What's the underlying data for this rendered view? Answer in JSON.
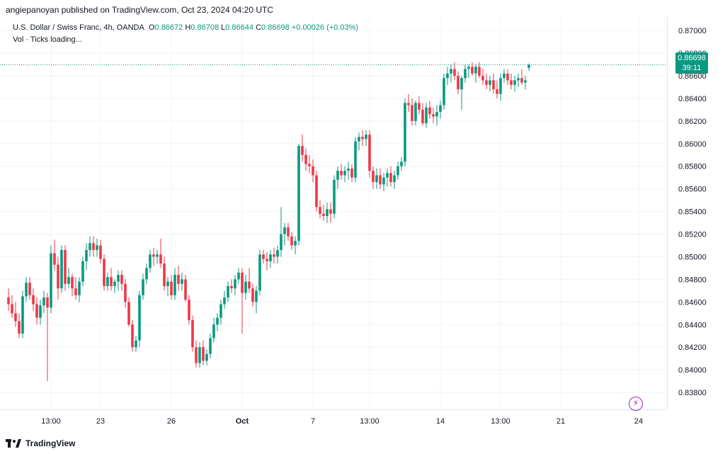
{
  "header": {
    "published_text": "angiepanoyan published on TradingView.com, Oct 23, 2024 04:20 UTC"
  },
  "legend": {
    "symbol": "U.S. Dollar / Swiss Franc, 4h, OANDA",
    "o_label": "O",
    "o_value": "0.86672",
    "h_label": "H",
    "h_value": "0.86708",
    "l_label": "L",
    "l_value": "0.86644",
    "c_label": "C",
    "c_value": "0.86698",
    "change": "+0.00026 (+0.03%)",
    "volume": "Vol · Ticks loading..."
  },
  "price_tag": {
    "price": "0.86698",
    "countdown": "39:11"
  },
  "footer": {
    "brand": "TradingView"
  },
  "colors": {
    "up": "#089981",
    "down": "#f23645",
    "grid": "#f0f3fa",
    "text": "#131722",
    "accent_purple": "#9c27b0"
  },
  "chart_data": {
    "type": "candlestick",
    "title": "U.S. Dollar / Swiss Franc, 4h, OANDA",
    "y_ticks": [
      "0.87000",
      "0.86800",
      "0.86600",
      "0.86400",
      "0.86200",
      "0.86000",
      "0.85800",
      "0.85600",
      "0.85400",
      "0.85200",
      "0.85000",
      "0.84800",
      "0.84600",
      "0.84400",
      "0.84200",
      "0.84000",
      "0.83800"
    ],
    "ylim": [
      0.8365,
      0.8712
    ],
    "x_ticks": [
      "13:00",
      "23",
      "26",
      "Oct",
      "7",
      "13:00",
      "14",
      "13:00",
      "21",
      "24"
    ],
    "x_tick_bar_index": [
      12,
      26,
      46,
      66,
      86,
      102,
      122,
      139,
      156,
      178
    ],
    "last_price": 0.86698,
    "ohlc": [
      [
        0.8464,
        0.8472,
        0.8452,
        0.8458
      ],
      [
        0.8458,
        0.8466,
        0.8446,
        0.845
      ],
      [
        0.845,
        0.846,
        0.8438,
        0.8443
      ],
      [
        0.8443,
        0.845,
        0.8428,
        0.8432
      ],
      [
        0.8432,
        0.847,
        0.8428,
        0.8465
      ],
      [
        0.8465,
        0.8482,
        0.846,
        0.8477
      ],
      [
        0.8477,
        0.8482,
        0.8462,
        0.8466
      ],
      [
        0.8466,
        0.8472,
        0.8452,
        0.8458
      ],
      [
        0.8458,
        0.8464,
        0.844,
        0.8446
      ],
      [
        0.8446,
        0.8462,
        0.844,
        0.8457
      ],
      [
        0.8457,
        0.847,
        0.845,
        0.8464
      ],
      [
        0.8464,
        0.8468,
        0.839,
        0.8455
      ],
      [
        0.8455,
        0.851,
        0.845,
        0.8503
      ],
      [
        0.8503,
        0.8515,
        0.8488,
        0.8493
      ],
      [
        0.8493,
        0.85,
        0.8462,
        0.8472
      ],
      [
        0.8472,
        0.851,
        0.8468,
        0.8506
      ],
      [
        0.8506,
        0.851,
        0.847,
        0.8476
      ],
      [
        0.8476,
        0.849,
        0.8472,
        0.8482
      ],
      [
        0.8482,
        0.8485,
        0.8465,
        0.8472
      ],
      [
        0.8472,
        0.8482,
        0.8462,
        0.8466
      ],
      [
        0.8466,
        0.8482,
        0.846,
        0.8478
      ],
      [
        0.8478,
        0.85,
        0.8474,
        0.8496
      ],
      [
        0.8496,
        0.8512,
        0.8488,
        0.8506
      ],
      [
        0.8506,
        0.8518,
        0.85,
        0.8512
      ],
      [
        0.8512,
        0.8518,
        0.85,
        0.8506
      ],
      [
        0.8506,
        0.8516,
        0.85,
        0.851
      ],
      [
        0.851,
        0.8515,
        0.8494,
        0.8498
      ],
      [
        0.8498,
        0.8502,
        0.847,
        0.8474
      ],
      [
        0.8474,
        0.8486,
        0.847,
        0.8482
      ],
      [
        0.8482,
        0.849,
        0.847,
        0.8474
      ],
      [
        0.8474,
        0.848,
        0.8468,
        0.8478
      ],
      [
        0.8478,
        0.8488,
        0.847,
        0.8484
      ],
      [
        0.8484,
        0.8488,
        0.847,
        0.8476
      ],
      [
        0.8476,
        0.848,
        0.8455,
        0.846
      ],
      [
        0.846,
        0.8464,
        0.8438,
        0.844
      ],
      [
        0.844,
        0.8444,
        0.8416,
        0.842
      ],
      [
        0.842,
        0.843,
        0.8416,
        0.8426
      ],
      [
        0.8426,
        0.847,
        0.842,
        0.8466
      ],
      [
        0.8466,
        0.8485,
        0.8462,
        0.848
      ],
      [
        0.848,
        0.8494,
        0.8476,
        0.849
      ],
      [
        0.849,
        0.8506,
        0.8486,
        0.8502
      ],
      [
        0.8502,
        0.8508,
        0.8492,
        0.85
      ],
      [
        0.85,
        0.8506,
        0.8494,
        0.8502
      ],
      [
        0.8502,
        0.8516,
        0.849,
        0.8494
      ],
      [
        0.8494,
        0.85,
        0.847,
        0.8474
      ],
      [
        0.8474,
        0.8482,
        0.8465,
        0.8478
      ],
      [
        0.8478,
        0.8484,
        0.8462,
        0.8466
      ],
      [
        0.8466,
        0.849,
        0.8462,
        0.8484
      ],
      [
        0.8484,
        0.8492,
        0.847,
        0.8476
      ],
      [
        0.8476,
        0.8486,
        0.847,
        0.848
      ],
      [
        0.848,
        0.8484,
        0.846,
        0.8462
      ],
      [
        0.8462,
        0.8466,
        0.844,
        0.8444
      ],
      [
        0.8444,
        0.8448,
        0.8416,
        0.842
      ],
      [
        0.842,
        0.8426,
        0.8402,
        0.8406
      ],
      [
        0.8406,
        0.8424,
        0.8402,
        0.842
      ],
      [
        0.842,
        0.8426,
        0.8404,
        0.8408
      ],
      [
        0.8408,
        0.8418,
        0.8404,
        0.8414
      ],
      [
        0.8414,
        0.8432,
        0.841,
        0.8428
      ],
      [
        0.8428,
        0.8446,
        0.8424,
        0.844
      ],
      [
        0.844,
        0.845,
        0.8434,
        0.8446
      ],
      [
        0.8446,
        0.8462,
        0.844,
        0.8458
      ],
      [
        0.8458,
        0.847,
        0.8454,
        0.8464
      ],
      [
        0.8464,
        0.8478,
        0.846,
        0.8474
      ],
      [
        0.8474,
        0.848,
        0.8468,
        0.8472
      ],
      [
        0.8472,
        0.8484,
        0.8466,
        0.848
      ],
      [
        0.848,
        0.849,
        0.8476,
        0.8486
      ],
      [
        0.8486,
        0.849,
        0.8432,
        0.8468
      ],
      [
        0.8468,
        0.8484,
        0.8462,
        0.8478
      ],
      [
        0.8478,
        0.849,
        0.8468,
        0.8472
      ],
      [
        0.8472,
        0.8476,
        0.8456,
        0.846
      ],
      [
        0.846,
        0.8474,
        0.845,
        0.847
      ],
      [
        0.847,
        0.8506,
        0.8466,
        0.8502
      ],
      [
        0.8502,
        0.8506,
        0.8494,
        0.8498
      ],
      [
        0.8498,
        0.8504,
        0.8488,
        0.8496
      ],
      [
        0.8496,
        0.8506,
        0.849,
        0.8502
      ],
      [
        0.8502,
        0.8508,
        0.8494,
        0.85
      ],
      [
        0.85,
        0.851,
        0.8494,
        0.8506
      ],
      [
        0.8506,
        0.8544,
        0.85,
        0.852
      ],
      [
        0.852,
        0.853,
        0.851,
        0.8526
      ],
      [
        0.8526,
        0.853,
        0.8514,
        0.8518
      ],
      [
        0.8518,
        0.8522,
        0.8506,
        0.851
      ],
      [
        0.851,
        0.8518,
        0.8502,
        0.8514
      ],
      [
        0.8514,
        0.86,
        0.851,
        0.8598
      ],
      [
        0.8598,
        0.8608,
        0.8584,
        0.859
      ],
      [
        0.859,
        0.8596,
        0.8576,
        0.8582
      ],
      [
        0.8582,
        0.859,
        0.8574,
        0.858
      ],
      [
        0.858,
        0.8586,
        0.8566,
        0.8572
      ],
      [
        0.8572,
        0.8576,
        0.854,
        0.8544
      ],
      [
        0.8544,
        0.855,
        0.8534,
        0.8538
      ],
      [
        0.8538,
        0.8546,
        0.8532,
        0.8536
      ],
      [
        0.8536,
        0.8548,
        0.853,
        0.8542
      ],
      [
        0.8542,
        0.8548,
        0.853,
        0.8538
      ],
      [
        0.8538,
        0.8572,
        0.8534,
        0.8568
      ],
      [
        0.8568,
        0.858,
        0.856,
        0.8576
      ],
      [
        0.8576,
        0.8582,
        0.8568,
        0.8572
      ],
      [
        0.8572,
        0.858,
        0.8566,
        0.8576
      ],
      [
        0.8576,
        0.8584,
        0.8568,
        0.8578
      ],
      [
        0.8578,
        0.8582,
        0.8566,
        0.857
      ],
      [
        0.857,
        0.8606,
        0.8566,
        0.8602
      ],
      [
        0.8602,
        0.861,
        0.8594,
        0.8606
      ],
      [
        0.8606,
        0.8612,
        0.8598,
        0.8604
      ],
      [
        0.8604,
        0.8612,
        0.8598,
        0.8608
      ],
      [
        0.8608,
        0.8612,
        0.857,
        0.8576
      ],
      [
        0.8576,
        0.858,
        0.856,
        0.8566
      ],
      [
        0.8566,
        0.8578,
        0.856,
        0.8572
      ],
      [
        0.8572,
        0.8578,
        0.856,
        0.8564
      ],
      [
        0.8564,
        0.8574,
        0.8558,
        0.857
      ],
      [
        0.857,
        0.8578,
        0.8562,
        0.8574
      ],
      [
        0.8574,
        0.858,
        0.8562,
        0.8566
      ],
      [
        0.8566,
        0.8576,
        0.856,
        0.8572
      ],
      [
        0.8572,
        0.8584,
        0.8568,
        0.858
      ],
      [
        0.858,
        0.8588,
        0.8576,
        0.8584
      ],
      [
        0.8584,
        0.864,
        0.858,
        0.8636
      ],
      [
        0.8636,
        0.8644,
        0.8628,
        0.8634
      ],
      [
        0.8634,
        0.864,
        0.8616,
        0.862
      ],
      [
        0.862,
        0.8638,
        0.8616,
        0.8636
      ],
      [
        0.8636,
        0.8642,
        0.8626,
        0.863
      ],
      [
        0.863,
        0.8636,
        0.8616,
        0.8618
      ],
      [
        0.8618,
        0.8636,
        0.8614,
        0.8632
      ],
      [
        0.8632,
        0.8638,
        0.8622,
        0.8626
      ],
      [
        0.8626,
        0.8632,
        0.8618,
        0.8624
      ],
      [
        0.8624,
        0.8634,
        0.8616,
        0.8628
      ],
      [
        0.8628,
        0.8638,
        0.8622,
        0.8634
      ],
      [
        0.8634,
        0.8662,
        0.863,
        0.8658
      ],
      [
        0.8658,
        0.8668,
        0.8652,
        0.8662
      ],
      [
        0.8662,
        0.867,
        0.8654,
        0.8666
      ],
      [
        0.8666,
        0.8672,
        0.8656,
        0.866
      ],
      [
        0.866,
        0.8664,
        0.8644,
        0.8648
      ],
      [
        0.8648,
        0.866,
        0.863,
        0.8658
      ],
      [
        0.8658,
        0.867,
        0.8654,
        0.8666
      ],
      [
        0.8666,
        0.867,
        0.8658,
        0.8668
      ],
      [
        0.8668,
        0.8672,
        0.866,
        0.8662
      ],
      [
        0.8662,
        0.867,
        0.8654,
        0.8668
      ],
      [
        0.8668,
        0.8672,
        0.8658,
        0.866
      ],
      [
        0.866,
        0.8666,
        0.8652,
        0.8656
      ],
      [
        0.8656,
        0.8662,
        0.8648,
        0.8652
      ],
      [
        0.8652,
        0.866,
        0.8646,
        0.8656
      ],
      [
        0.8656,
        0.8662,
        0.8644,
        0.8648
      ],
      [
        0.8648,
        0.8656,
        0.864,
        0.8644
      ],
      [
        0.8644,
        0.8662,
        0.8638,
        0.8658
      ],
      [
        0.8658,
        0.8666,
        0.8654,
        0.8662
      ],
      [
        0.8662,
        0.8666,
        0.8652,
        0.8656
      ],
      [
        0.8656,
        0.8662,
        0.8648,
        0.8652
      ],
      [
        0.8652,
        0.866,
        0.8646,
        0.8656
      ],
      [
        0.8656,
        0.8662,
        0.865,
        0.8658
      ],
      [
        0.8658,
        0.8666,
        0.8652,
        0.8654
      ],
      [
        0.8654,
        0.866,
        0.8648,
        0.8656
      ],
      [
        0.8667,
        0.86708,
        0.86644,
        0.86698
      ]
    ]
  }
}
